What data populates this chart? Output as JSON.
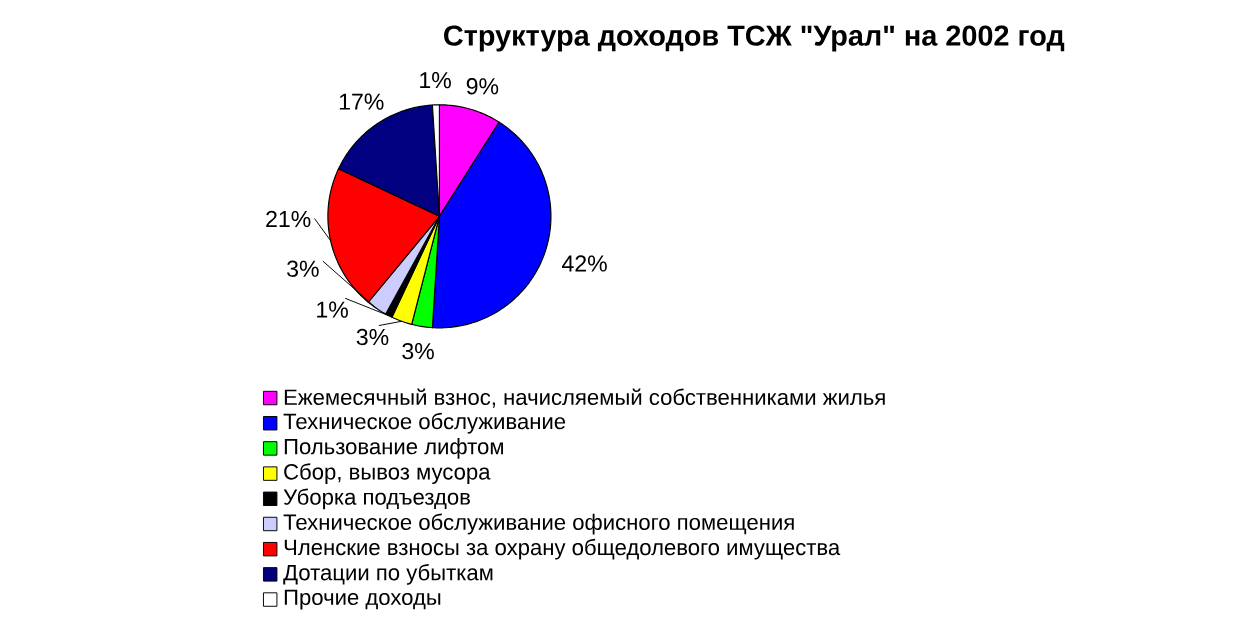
{
  "chart_data": {
    "type": "pie",
    "title": "Структура доходов ТСЖ \"Урал\" на 2002 год",
    "categories": [
      "Ежемесячный взнос, начисляемый собственниками жилья",
      "Техническое обслуживание",
      "Пользование лифтом",
      "Сбор, вывоз мусора",
      "Уборка подъездов",
      "Техническое обслуживание офисного помещения",
      "Членские взносы за охрану общедолевого имущества",
      "Дотации по убыткам",
      "Прочие доходы"
    ],
    "values": [
      9,
      42,
      3,
      3,
      1,
      3,
      21,
      17,
      1
    ],
    "value_labels": [
      "9%",
      "42%",
      "3%",
      "3%",
      "1%",
      "3%",
      "21%",
      "17%",
      "1%"
    ],
    "colors": [
      "#ff00ff",
      "#0000ff",
      "#00ff00",
      "#ffff00",
      "#000000",
      "#ccccff",
      "#ff0000",
      "#000080",
      "#ffffff"
    ],
    "legend": "bottom"
  }
}
